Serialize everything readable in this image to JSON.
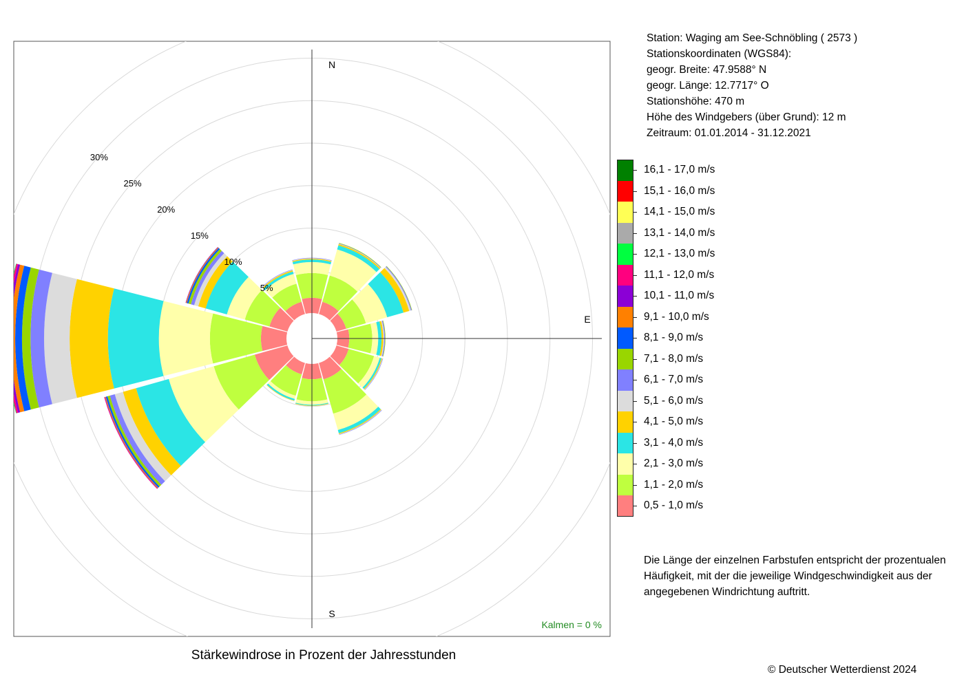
{
  "station_info": {
    "station": "Station:  Waging am See-Schnöbling  ( 2573 )",
    "coords_header": "Stationskoordinaten (WGS84):",
    "lat": "geogr. Breite: 47.9588° N",
    "lon": "geogr. Länge: 12.7717° O",
    "elevation": "Stationshöhe: 470 m",
    "sensor_height": "Höhe des Windgebers (über Grund): 12 m",
    "period": "Zeitraum: 01.01.2014 - 31.12.2021"
  },
  "legend_note": "Die Länge der einzelnen Farbstufen entspricht der prozentualen Häufigkeit, mit der die jeweilige Windgeschwindigkeit aus der angegebenen Windrichtung auftritt.",
  "subtitle": "Stärkewindrose in Prozent der Jahresstunden",
  "copyright": "© Deutscher Wetterdienst  2024",
  "calm_label": "Kalmen  =  0 %",
  "chart_data": {
    "type": "wind-rose",
    "compass_labels": [
      "N",
      "E",
      "S"
    ],
    "ring_labels": [
      "5%",
      "10%",
      "15%",
      "20%",
      "25%",
      "30%"
    ],
    "ring_values": [
      5,
      10,
      15,
      20,
      25,
      30
    ],
    "rmax": 35,
    "grid": true,
    "directions_deg": [
      0,
      30,
      60,
      90,
      120,
      150,
      180,
      210,
      240,
      270,
      300,
      330
    ],
    "speed_classes": [
      {
        "label": "0,5 - 1,0 m/s",
        "color": "#ff7f7f"
      },
      {
        "label": "1,1 - 2,0 m/s",
        "color": "#bfff3f"
      },
      {
        "label": "2,1 - 3,0 m/s",
        "color": "#ffffaa"
      },
      {
        "label": "3,1 - 4,0 m/s",
        "color": "#2be5e5"
      },
      {
        "label": "4,1 - 5,0 m/s",
        "color": "#ffd200"
      },
      {
        "label": "5,1 - 6,0 m/s",
        "color": "#dcdcdc"
      },
      {
        "label": "6,1 - 7,0 m/s",
        "color": "#8080ff"
      },
      {
        "label": "7,1 - 8,0 m/s",
        "color": "#99d600"
      },
      {
        "label": "8,1 - 9,0 m/s",
        "color": "#005aff"
      },
      {
        "label": "9,1 - 10,0 m/s",
        "color": "#ff8000"
      },
      {
        "label": "10,1 - 11,0 m/s",
        "color": "#8b00d6"
      },
      {
        "label": "11,1 - 12,0 m/s",
        "color": "#ff007f"
      },
      {
        "label": "12,1 - 13,0 m/s",
        "color": "#00ff40"
      },
      {
        "label": "13,1 - 14,0 m/s",
        "color": "#aaaaaa"
      },
      {
        "label": "14,1 - 15,0 m/s",
        "color": "#ffff55"
      },
      {
        "label": "15,1 - 16,0 m/s",
        "color": "#ff0000"
      },
      {
        "label": "16,1 - 17,0 m/s",
        "color": "#008000"
      }
    ],
    "series": [
      {
        "direction": 0,
        "values": [
          1.8,
          2.9,
          1.3,
          0.3,
          0.1,
          0.05,
          0.05,
          0,
          0,
          0,
          0,
          0,
          0,
          0,
          0,
          0,
          0
        ]
      },
      {
        "direction": 30,
        "values": [
          1.5,
          3.2,
          3.2,
          0.5,
          0.15,
          0.05,
          0.05,
          0.05,
          0,
          0,
          0,
          0,
          0,
          0,
          0,
          0,
          0
        ]
      },
      {
        "direction": 60,
        "values": [
          1.2,
          2.4,
          2.6,
          2.0,
          0.7,
          0.2,
          0.1,
          0.05,
          0,
          0,
          0,
          0,
          0,
          0,
          0,
          0,
          0
        ]
      },
      {
        "direction": 90,
        "values": [
          1.4,
          2.7,
          0.7,
          0.4,
          0.2,
          0.1,
          0.1,
          0.05,
          0,
          0,
          0,
          0,
          0,
          0,
          0,
          0,
          0
        ]
      },
      {
        "direction": 120,
        "values": [
          1.5,
          3.1,
          0.7,
          0.2,
          0.1,
          0.05,
          0.05,
          0,
          0,
          0,
          0,
          0,
          0,
          0,
          0,
          0,
          0
        ]
      },
      {
        "direction": 150,
        "values": [
          2.0,
          4.2,
          2.0,
          0.4,
          0.1,
          0.05,
          0.05,
          0,
          0,
          0,
          0,
          0,
          0,
          0,
          0,
          0,
          0
        ]
      },
      {
        "direction": 180,
        "values": [
          1.8,
          2.6,
          0.4,
          0.1,
          0.05,
          0,
          0,
          0,
          0,
          0,
          0,
          0,
          0,
          0,
          0,
          0,
          0
        ]
      },
      {
        "direction": 210,
        "values": [
          1.4,
          2.6,
          0.4,
          0.2,
          0.05,
          0,
          0,
          0,
          0,
          0,
          0,
          0,
          0,
          0,
          0,
          0,
          0
        ]
      },
      {
        "direction": 240,
        "values": [
          4.0,
          5.0,
          5.5,
          4.0,
          1.6,
          1.0,
          0.6,
          0.3,
          0.2,
          0.1,
          0.05,
          0.05,
          0,
          0,
          0,
          0,
          0
        ]
      },
      {
        "direction": 270,
        "values": [
          3.0,
          6.0,
          6.0,
          6.0,
          4.5,
          3.0,
          1.6,
          1.0,
          0.8,
          0.5,
          0.25,
          0.2,
          0.05,
          0,
          0,
          0,
          0
        ]
      },
      {
        "direction": 300,
        "values": [
          2.2,
          3.0,
          2.2,
          2.6,
          0.9,
          0.5,
          0.4,
          0.3,
          0.2,
          0.1,
          0.05,
          0,
          0,
          0,
          0,
          0,
          0
        ]
      },
      {
        "direction": 330,
        "values": [
          1.5,
          2.2,
          1.2,
          0.3,
          0.15,
          0.05,
          0.05,
          0,
          0,
          0,
          0,
          0,
          0,
          0,
          0,
          0,
          0
        ]
      }
    ]
  }
}
